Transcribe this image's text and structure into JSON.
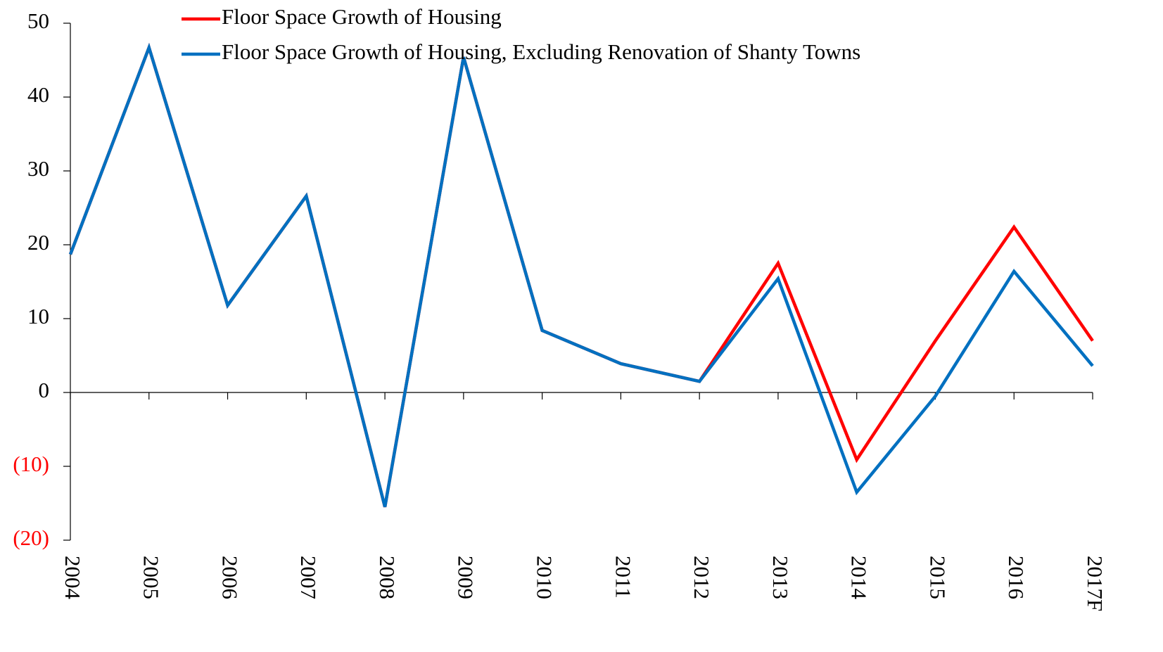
{
  "chart_data": {
    "type": "line",
    "categories": [
      "2004",
      "2005",
      "2006",
      "2007",
      "2008",
      "2009",
      "2010",
      "2011",
      "2012",
      "2013",
      "2014",
      "2015",
      "2016",
      "2017F"
    ],
    "series": [
      {
        "name": "Floor Space Growth of Housing",
        "color": "#ff0000",
        "values": [
          18.7,
          46.7,
          11.8,
          26.6,
          -15.5,
          45.4,
          8.4,
          3.9,
          1.5,
          17.5,
          -9.1,
          7.0,
          22.4,
          7.0
        ]
      },
      {
        "name": "Floor Space Growth of Housing, Excluding Renovation of Shanty Towns",
        "color": "#0070c0",
        "values": [
          18.7,
          46.7,
          11.8,
          26.6,
          -15.5,
          45.4,
          8.4,
          3.9,
          1.5,
          15.4,
          -13.5,
          -0.5,
          16.4,
          3.6
        ]
      }
    ],
    "ylim": [
      -20,
      50
    ],
    "yticks": [
      {
        "value": -20,
        "label": "(20)"
      },
      {
        "value": -10,
        "label": "(10)"
      },
      0,
      10,
      20,
      30,
      40,
      50
    ],
    "negative_tick_color": "#ff0000",
    "grid": false,
    "legend": "top"
  }
}
